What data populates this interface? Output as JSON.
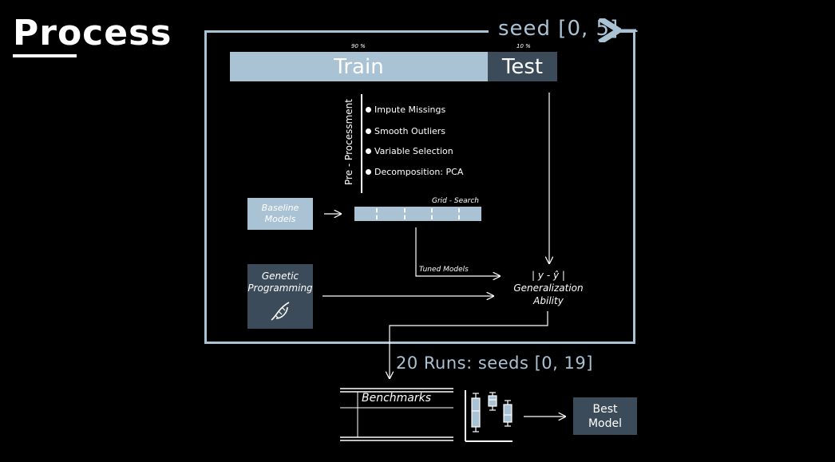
{
  "title": "Process",
  "loop": {
    "seed_label": "seed [0, 5]"
  },
  "split": {
    "train_label": "Train",
    "train_pct": "90 %",
    "test_label": "Test",
    "test_pct": "10 %"
  },
  "preprocessing": {
    "label": "Pre - Processment",
    "steps": [
      "Impute Missings",
      "Smooth Outliers",
      "Variable Selection",
      "Decomposition: PCA"
    ]
  },
  "baseline": {
    "line1": "Baseline",
    "line2": "Models"
  },
  "grid_search": {
    "label": "Grid - Search"
  },
  "tuned_models": {
    "label": "Tuned Models"
  },
  "genetic_programming": {
    "line1": "Genetic",
    "line2": "Programming"
  },
  "evaluation": {
    "formula": "| y - ŷ |",
    "line1": "Generalization",
    "line2": "Ability"
  },
  "runs": {
    "label": "20 Runs: seeds [0, 19]"
  },
  "benchmarks": {
    "label": "Benchmarks"
  },
  "best_model": {
    "line1": "Best",
    "line2": "Model"
  },
  "colors": {
    "accent": "#a9c2d4",
    "dark_box": "#3b4b59",
    "background": "#000000"
  }
}
